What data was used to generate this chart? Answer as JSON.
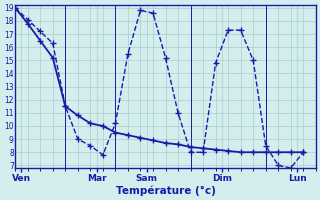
{
  "xlabel": "Température (°c)",
  "bg_color": "#d4eeed",
  "grid_color": "#a8cccc",
  "line_color": "#1a1aaa",
  "ylim": [
    7,
    19
  ],
  "yticks": [
    7,
    8,
    9,
    10,
    11,
    12,
    13,
    14,
    15,
    16,
    17,
    18,
    19
  ],
  "xlim": [
    0,
    24
  ],
  "xtick_positions": [
    0.5,
    6.5,
    10.5,
    16.5,
    22.5
  ],
  "xtick_labels": [
    "Ven",
    "Mar",
    "Sam",
    "Dim",
    "Lun"
  ],
  "vlines": [
    4,
    8,
    14,
    20
  ],
  "line1_x": [
    0,
    1,
    2,
    3,
    4,
    5,
    6,
    7,
    8,
    9,
    10,
    11,
    12,
    13,
    14,
    15,
    16,
    17,
    18,
    19,
    20,
    21,
    22,
    23
  ],
  "line1_y": [
    19.0,
    18.1,
    17.2,
    16.3,
    11.5,
    9.0,
    8.5,
    7.8,
    10.2,
    15.5,
    18.8,
    18.6,
    15.2,
    11.0,
    8.0,
    8.0,
    14.8,
    17.3,
    17.3,
    15.0,
    8.5,
    7.0,
    6.8,
    8.0
  ],
  "line2_x": [
    0,
    1,
    2,
    3,
    4,
    5,
    6,
    7,
    8,
    9,
    10,
    11,
    12,
    13,
    14,
    15,
    16,
    17,
    18,
    19,
    20,
    21,
    22,
    23
  ],
  "line2_y": [
    19.0,
    17.8,
    16.5,
    15.2,
    11.5,
    10.8,
    10.2,
    10.0,
    9.5,
    9.3,
    9.1,
    8.9,
    8.7,
    8.6,
    8.4,
    8.3,
    8.2,
    8.1,
    8.0,
    8.0,
    8.0,
    8.0,
    8.0,
    8.0
  ]
}
